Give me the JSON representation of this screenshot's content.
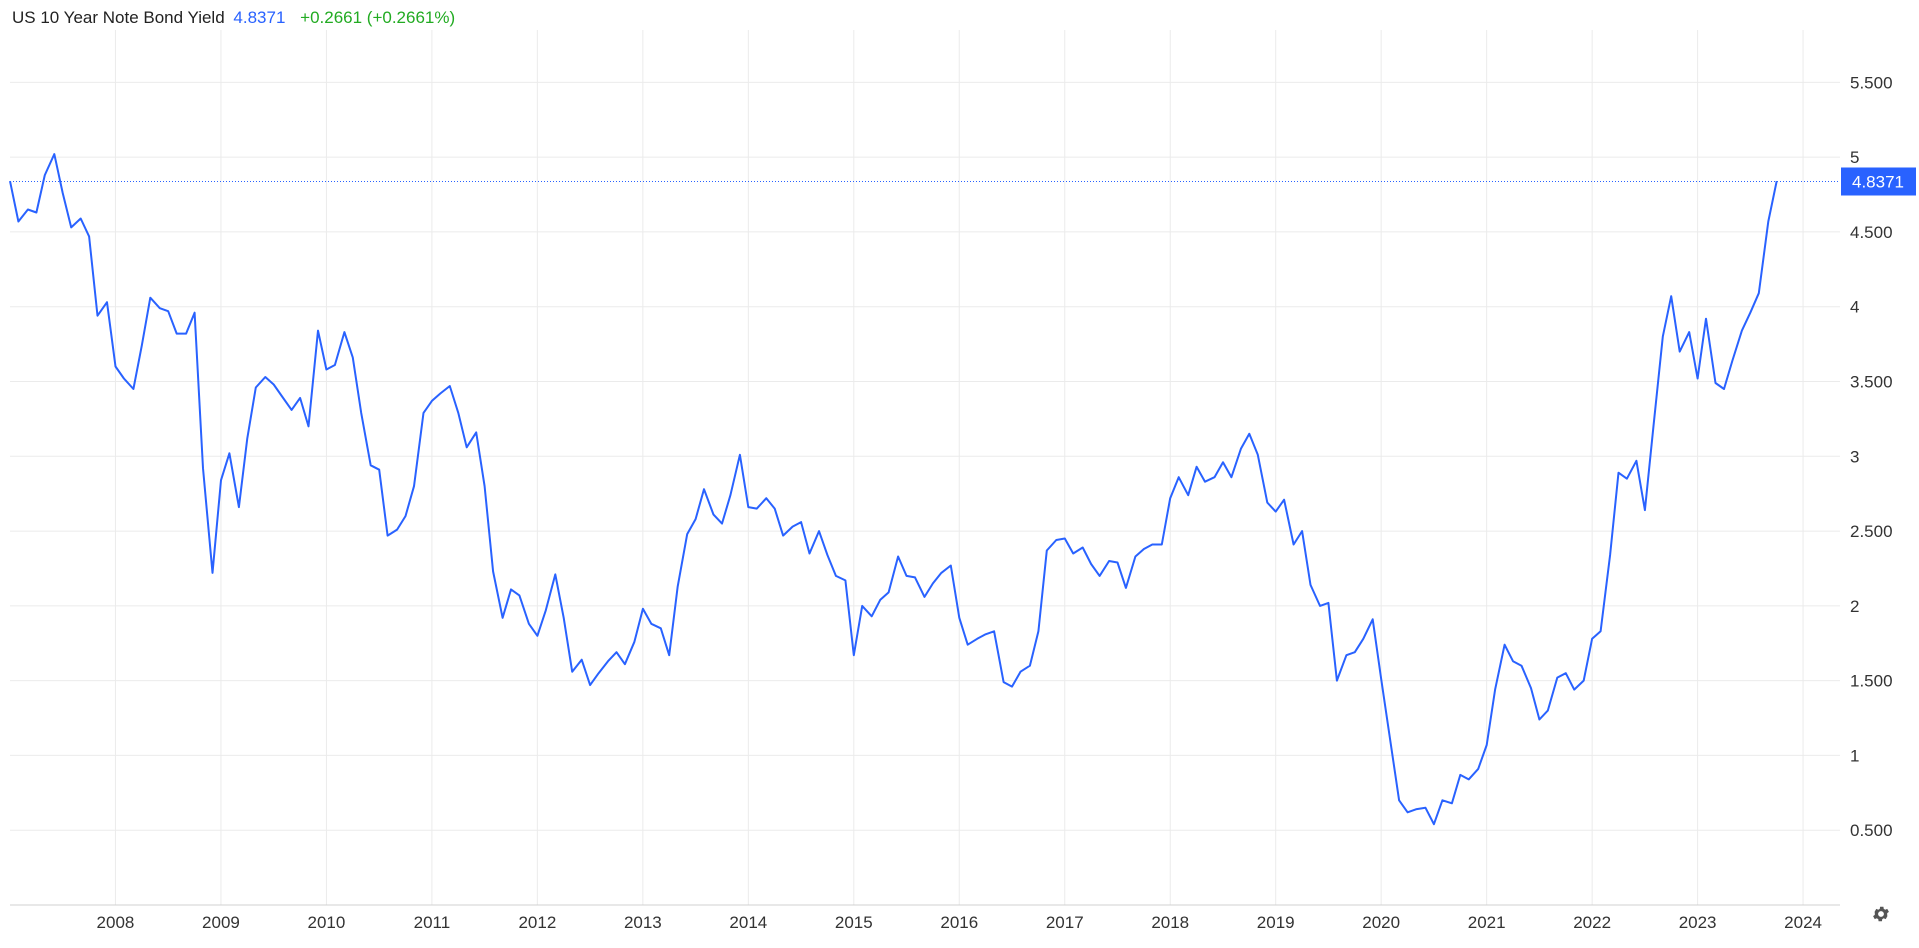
{
  "header": {
    "title": "US 10 Year Note Bond Yield",
    "last_value": "4.8371",
    "change": "+0.2661 (+0.2661%)"
  },
  "colors": {
    "line": "#2962ff",
    "up": "#22ab22",
    "grid": "#ebebeb",
    "text": "#333333",
    "price_tag_bg": "#2962ff"
  },
  "icons": {
    "settings": "gear-icon"
  },
  "chart_data": {
    "type": "line",
    "title": "US 10 Year Note Bond Yield",
    "xlabel": "",
    "ylabel": "",
    "x_range": [
      2007.0,
      2024.35
    ],
    "ylim": [
      0,
      5.85
    ],
    "y_ticks": [
      0.5,
      1,
      1.5,
      2,
      2.5,
      3,
      3.5,
      4,
      4.5,
      5,
      5.5
    ],
    "y_tick_labels": [
      "0.500",
      "1",
      "1.500",
      "2",
      "2.500",
      "3",
      "3.500",
      "4",
      "4.500",
      "5",
      "5.500"
    ],
    "x_ticks": [
      2008,
      2009,
      2010,
      2011,
      2012,
      2013,
      2014,
      2015,
      2016,
      2017,
      2018,
      2019,
      2020,
      2021,
      2022,
      2023,
      2024
    ],
    "x_tick_labels": [
      "2008",
      "2009",
      "2010",
      "2011",
      "2012",
      "2013",
      "2014",
      "2015",
      "2016",
      "2017",
      "2018",
      "2019",
      "2020",
      "2021",
      "2022",
      "2023",
      "2024"
    ],
    "grid": true,
    "last_value_marker": 4.8371,
    "series": [
      {
        "x": [
          2007.0,
          2007.08,
          2007.17,
          2007.25,
          2007.33,
          2007.42,
          2007.5,
          2007.58,
          2007.67,
          2007.75,
          2007.83,
          2007.92,
          2008.0,
          2008.08,
          2008.17,
          2008.25,
          2008.33,
          2008.42,
          2008.5,
          2008.58,
          2008.67,
          2008.75,
          2008.83,
          2008.92,
          2009.0,
          2009.08,
          2009.17,
          2009.25,
          2009.33,
          2009.42,
          2009.5,
          2009.58,
          2009.67,
          2009.75,
          2009.83,
          2009.92,
          2010.0,
          2010.08,
          2010.17,
          2010.25,
          2010.33,
          2010.42,
          2010.5,
          2010.58,
          2010.67,
          2010.75,
          2010.83,
          2010.92,
          2011.0,
          2011.08,
          2011.17,
          2011.25,
          2011.33,
          2011.42,
          2011.5,
          2011.58,
          2011.67,
          2011.75,
          2011.83,
          2011.92,
          2012.0,
          2012.08,
          2012.17,
          2012.25,
          2012.33,
          2012.42,
          2012.5,
          2012.58,
          2012.67,
          2012.75,
          2012.83,
          2012.92,
          2013.0,
          2013.08,
          2013.17,
          2013.25,
          2013.33,
          2013.42,
          2013.5,
          2013.58,
          2013.67,
          2013.75,
          2013.83,
          2013.92,
          2014.0,
          2014.08,
          2014.17,
          2014.25,
          2014.33,
          2014.42,
          2014.5,
          2014.58,
          2014.67,
          2014.75,
          2014.83,
          2014.92,
          2015.0,
          2015.08,
          2015.17,
          2015.25,
          2015.33,
          2015.42,
          2015.5,
          2015.58,
          2015.67,
          2015.75,
          2015.83,
          2015.92,
          2016.0,
          2016.08,
          2016.17,
          2016.25,
          2016.33,
          2016.42,
          2016.5,
          2016.58,
          2016.67,
          2016.75,
          2016.83,
          2016.92,
          2017.0,
          2017.08,
          2017.17,
          2017.25,
          2017.33,
          2017.42,
          2017.5,
          2017.58,
          2017.67,
          2017.75,
          2017.83,
          2017.92,
          2018.0,
          2018.08,
          2018.17,
          2018.25,
          2018.33,
          2018.42,
          2018.5,
          2018.58,
          2018.67,
          2018.75,
          2018.83,
          2018.92,
          2019.0,
          2019.08,
          2019.17,
          2019.25,
          2019.33,
          2019.42,
          2019.5,
          2019.58,
          2019.67,
          2019.75,
          2019.83,
          2019.92,
          2020.0,
          2020.08,
          2020.17,
          2020.25,
          2020.33,
          2020.42,
          2020.5,
          2020.58,
          2020.67,
          2020.75,
          2020.83,
          2020.92,
          2021.0,
          2021.08,
          2021.17,
          2021.25,
          2021.33,
          2021.42,
          2021.5,
          2021.58,
          2021.67,
          2021.75,
          2021.83,
          2021.92,
          2022.0,
          2022.08,
          2022.17,
          2022.25,
          2022.33,
          2022.42,
          2022.5,
          2022.58,
          2022.67,
          2022.75,
          2022.83,
          2022.92,
          2023.0,
          2023.08,
          2023.17,
          2023.25,
          2023.33,
          2023.42,
          2023.5,
          2023.58,
          2023.67,
          2023.75
        ],
        "values": [
          4.84,
          4.57,
          4.65,
          4.63,
          4.88,
          5.02,
          4.76,
          4.53,
          4.59,
          4.47,
          3.94,
          4.03,
          3.6,
          3.52,
          3.45,
          3.74,
          4.06,
          3.99,
          3.97,
          3.82,
          3.82,
          3.96,
          2.92,
          2.22,
          2.84,
          3.02,
          2.66,
          3.12,
          3.46,
          3.53,
          3.48,
          3.4,
          3.31,
          3.39,
          3.2,
          3.84,
          3.58,
          3.61,
          3.83,
          3.66,
          3.29,
          2.94,
          2.91,
          2.47,
          2.51,
          2.6,
          2.8,
          3.29,
          3.37,
          3.42,
          3.47,
          3.29,
          3.06,
          3.16,
          2.8,
          2.23,
          1.92,
          2.11,
          2.07,
          1.88,
          1.8,
          1.97,
          2.21,
          1.92,
          1.56,
          1.64,
          1.47,
          1.55,
          1.63,
          1.69,
          1.61,
          1.76,
          1.98,
          1.88,
          1.85,
          1.67,
          2.13,
          2.48,
          2.58,
          2.78,
          2.61,
          2.55,
          2.74,
          3.01,
          2.66,
          2.65,
          2.72,
          2.65,
          2.47,
          2.53,
          2.56,
          2.35,
          2.5,
          2.34,
          2.2,
          2.17,
          1.67,
          2.0,
          1.93,
          2.04,
          2.09,
          2.33,
          2.2,
          2.19,
          2.06,
          2.15,
          2.22,
          2.27,
          1.92,
          1.74,
          1.78,
          1.81,
          1.83,
          1.49,
          1.46,
          1.56,
          1.6,
          1.83,
          2.37,
          2.44,
          2.45,
          2.35,
          2.39,
          2.28,
          2.2,
          2.3,
          2.29,
          2.12,
          2.33,
          2.38,
          2.41,
          2.41,
          2.72,
          2.86,
          2.74,
          2.93,
          2.83,
          2.86,
          2.96,
          2.86,
          3.05,
          3.15,
          3.01,
          2.69,
          2.63,
          2.71,
          2.41,
          2.5,
          2.14,
          2.0,
          2.02,
          1.5,
          1.67,
          1.69,
          1.78,
          1.91,
          1.51,
          1.13,
          0.7,
          0.62,
          0.64,
          0.65,
          0.54,
          0.7,
          0.68,
          0.87,
          0.84,
          0.91,
          1.07,
          1.44,
          1.74,
          1.63,
          1.6,
          1.45,
          1.24,
          1.3,
          1.52,
          1.55,
          1.44,
          1.5,
          1.78,
          1.83,
          2.34,
          2.89,
          2.85,
          2.97,
          2.64,
          3.19,
          3.8,
          4.07,
          3.7,
          3.83,
          3.52,
          3.92,
          3.49,
          3.45,
          3.64,
          3.84,
          3.96,
          4.09,
          4.57,
          4.84
        ]
      }
    ]
  }
}
